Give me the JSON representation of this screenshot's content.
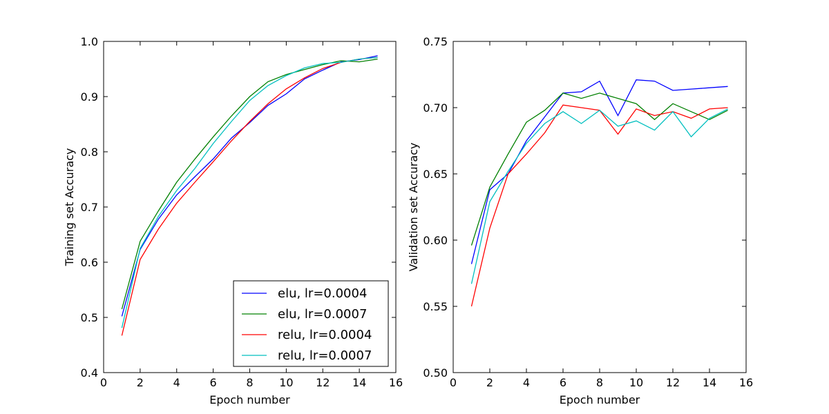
{
  "chart_data": [
    {
      "type": "line",
      "xlabel": "Epoch number",
      "ylabel": "Training set Accuracy",
      "xlim": [
        0,
        16
      ],
      "ylim": [
        0.4,
        1.0
      ],
      "xticks": [
        "0",
        "2",
        "4",
        "6",
        "8",
        "10",
        "12",
        "14",
        "16"
      ],
      "yticks": [
        "0.4",
        "0.5",
        "0.6",
        "0.7",
        "0.8",
        "0.9",
        "1.0"
      ],
      "legend": "lower-right",
      "x": [
        1,
        2,
        3,
        4,
        5,
        6,
        7,
        8,
        9,
        10,
        11,
        12,
        13,
        14,
        15
      ],
      "series": [
        {
          "name": "elu, lr=0.0004",
          "color": "#0000ff",
          "values": [
            0.502,
            0.623,
            0.678,
            0.722,
            0.755,
            0.787,
            0.825,
            0.853,
            0.884,
            0.905,
            0.932,
            0.948,
            0.963,
            0.967,
            0.974
          ]
        },
        {
          "name": "elu, lr=0.0007",
          "color": "#008000",
          "values": [
            0.515,
            0.638,
            0.693,
            0.745,
            0.787,
            0.827,
            0.865,
            0.9,
            0.927,
            0.94,
            0.949,
            0.958,
            0.965,
            0.963,
            0.968
          ]
        },
        {
          "name": "relu, lr=0.0004",
          "color": "#ff0000",
          "values": [
            0.467,
            0.605,
            0.66,
            0.707,
            0.745,
            0.782,
            0.82,
            0.855,
            0.887,
            0.914,
            0.934,
            0.951,
            0.962,
            0.968,
            0.971
          ]
        },
        {
          "name": "relu, lr=0.0007",
          "color": "#00bfbf",
          "values": [
            0.481,
            0.625,
            0.683,
            0.73,
            0.77,
            0.815,
            0.855,
            0.893,
            0.92,
            0.938,
            0.952,
            0.96,
            0.962,
            0.968,
            0.971
          ]
        }
      ]
    },
    {
      "type": "line",
      "xlabel": "Epoch number",
      "ylabel": "Validation set Accuracy",
      "xlim": [
        0,
        16
      ],
      "ylim": [
        0.5,
        0.75
      ],
      "xticks": [
        "0",
        "2",
        "4",
        "6",
        "8",
        "10",
        "12",
        "14",
        "16"
      ],
      "yticks": [
        "0.50",
        "0.55",
        "0.60",
        "0.65",
        "0.70",
        "0.75"
      ],
      "x": [
        1,
        2,
        3,
        4,
        5,
        6,
        7,
        8,
        9,
        10,
        11,
        12,
        13,
        14,
        15
      ],
      "series": [
        {
          "color": "#0000ff",
          "values": [
            0.582,
            0.638,
            0.65,
            0.675,
            0.693,
            0.711,
            0.712,
            0.72,
            0.694,
            0.721,
            0.72,
            0.713,
            0.714,
            0.715,
            0.716
          ]
        },
        {
          "color": "#008000",
          "values": [
            0.596,
            0.64,
            0.665,
            0.689,
            0.698,
            0.711,
            0.707,
            0.711,
            0.707,
            0.703,
            0.691,
            0.703,
            0.697,
            0.691,
            0.698
          ]
        },
        {
          "color": "#ff0000",
          "values": [
            0.55,
            0.609,
            0.65,
            0.665,
            0.681,
            0.702,
            0.7,
            0.698,
            0.68,
            0.699,
            0.694,
            0.697,
            0.692,
            0.699,
            0.7
          ]
        },
        {
          "color": "#00bfbf",
          "values": [
            0.567,
            0.629,
            0.652,
            0.673,
            0.688,
            0.697,
            0.688,
            0.698,
            0.686,
            0.69,
            0.683,
            0.697,
            0.678,
            0.692,
            0.699
          ]
        }
      ]
    }
  ]
}
